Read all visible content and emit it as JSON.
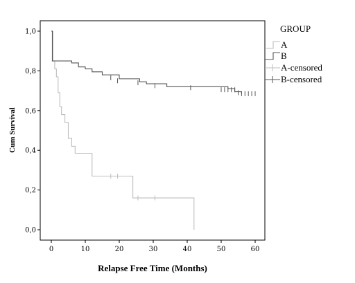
{
  "chart_data": {
    "type": "line",
    "subtype": "kaplan-meier-step",
    "title": "",
    "xlabel": "Relapse Free Time (Months)",
    "ylabel": "Cum Survival",
    "xlim": [
      0,
      60
    ],
    "ylim": [
      0,
      1
    ],
    "xticks": [
      0,
      10,
      20,
      30,
      40,
      50,
      60
    ],
    "yticks": [
      "0,0",
      "0,2",
      "0,4",
      "0,6",
      "0,8",
      "1,0"
    ],
    "grid": false,
    "legend": {
      "title": "GROUP",
      "placement": "right",
      "entries": [
        "A",
        "B",
        "A-censored",
        "B-censored"
      ]
    },
    "series": [
      {
        "name": "A",
        "color": "#bdbdbd",
        "x": [
          0,
          0.5,
          1,
          1.5,
          2,
          2.5,
          3,
          4,
          5,
          6,
          7,
          12,
          24,
          42,
          42
        ],
        "y": [
          1.0,
          0.85,
          0.81,
          0.77,
          0.69,
          0.62,
          0.58,
          0.54,
          0.46,
          0.42,
          0.385,
          0.27,
          0.16,
          0.16,
          0.0
        ],
        "censored": [
          [
            17.5,
            0.27
          ],
          [
            19.5,
            0.27
          ],
          [
            25.5,
            0.16
          ],
          [
            30.5,
            0.16
          ]
        ]
      },
      {
        "name": "B",
        "color": "#555555",
        "x": [
          0,
          0.3,
          6,
          8,
          10,
          12,
          15,
          20,
          26,
          28,
          34,
          52,
          54,
          56
        ],
        "y": [
          1.0,
          0.85,
          0.84,
          0.82,
          0.81,
          0.795,
          0.78,
          0.76,
          0.745,
          0.735,
          0.72,
          0.71,
          0.695,
          0.685
        ],
        "censored": [
          [
            17.5,
            0.765
          ],
          [
            19.5,
            0.75
          ],
          [
            25.5,
            0.74
          ],
          [
            30.5,
            0.725
          ],
          [
            41,
            0.715
          ],
          [
            50,
            0.705
          ],
          [
            51,
            0.705
          ],
          [
            52,
            0.705
          ],
          [
            53,
            0.705
          ],
          [
            54,
            0.705
          ],
          [
            55,
            0.69
          ],
          [
            56,
            0.685
          ],
          [
            57,
            0.685
          ],
          [
            58,
            0.685
          ],
          [
            59,
            0.685
          ],
          [
            60,
            0.685
          ]
        ]
      }
    ]
  }
}
